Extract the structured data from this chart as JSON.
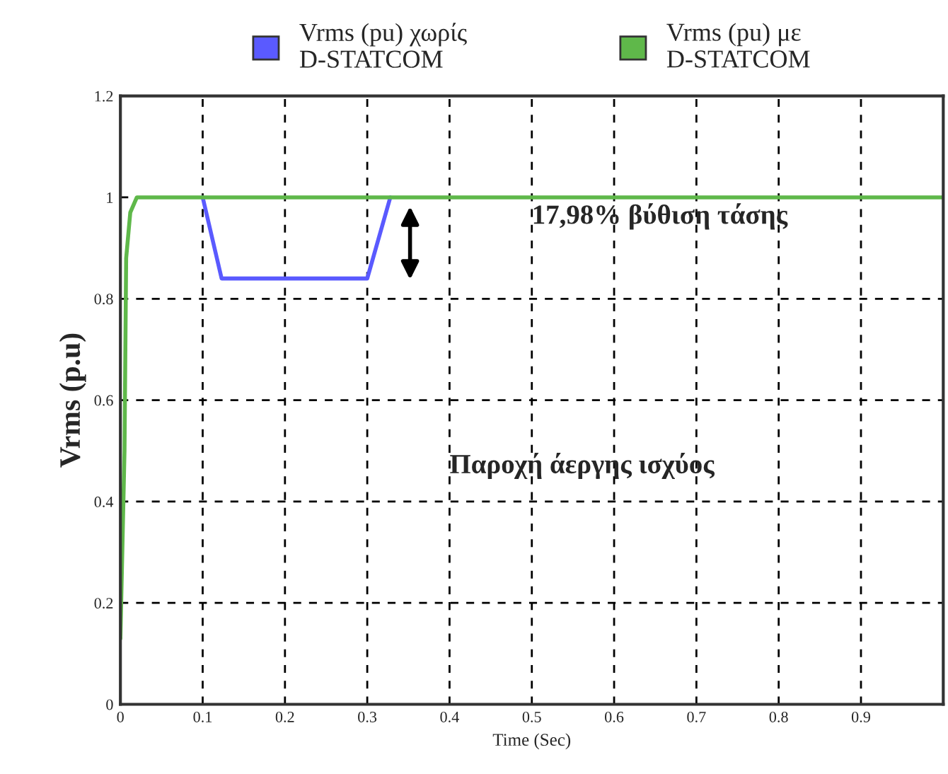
{
  "chart_data": {
    "type": "line",
    "xlabel": "Time (Sec)",
    "ylabel": "Vrms (p.u)",
    "xlim": [
      0,
      1
    ],
    "xticks": [
      0,
      0.1,
      0.2,
      0.3,
      0.4,
      0.5,
      0.6,
      0.7,
      0.8,
      0.9
    ],
    "ylim": [
      0,
      1.2
    ],
    "yticks": [
      0,
      0.2,
      0.4,
      0.6,
      0.8,
      1,
      1.2
    ],
    "grid": true,
    "legend": "top",
    "line_style": "solid",
    "marker": "none",
    "series": [
      {
        "name": "Vrms (pu) χωρίς D-STATCOM",
        "color": "#5a5aff",
        "x": [
          0.1,
          0.123,
          0.3,
          0.328
        ],
        "values": [
          1,
          0.84,
          0.84,
          1
        ]
      },
      {
        "name": "Vrms (pu) με D-STATCOM",
        "color": "#5fb84a",
        "x": [
          0,
          0.005,
          0.007,
          0.012,
          0.02,
          1
        ],
        "values": [
          0.13,
          0.5,
          0.88,
          0.97,
          1,
          1
        ]
      }
    ],
    "annotations": [
      "17,98% βύθιση τάσης",
      "Παροχή άεργης ισχύος"
    ]
  }
}
